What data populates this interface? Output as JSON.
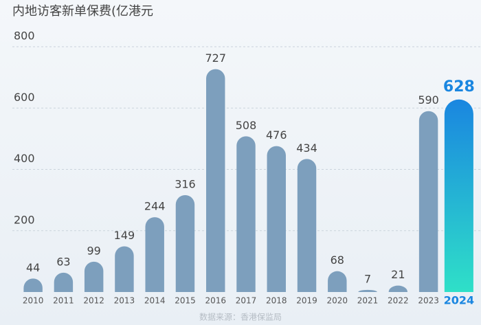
{
  "chart_data": {
    "type": "bar",
    "title": "内地访客新单保费(亿港元",
    "source": "数据来源：香港保监局",
    "categories": [
      "2010",
      "2011",
      "2012",
      "2013",
      "2014",
      "2015",
      "2016",
      "2017",
      "2018",
      "2019",
      "2020",
      "2021",
      "2022",
      "2023",
      "2024"
    ],
    "values": [
      44,
      63,
      99,
      149,
      244,
      316,
      727,
      508,
      476,
      434,
      68,
      7,
      21,
      590,
      628
    ],
    "colors": [
      "#7d9fbd",
      "#7d9fbd",
      "#7d9fbd",
      "#7d9fbd",
      "#7d9fbd",
      "#7d9fbd",
      "#7d9fbd",
      "#7d9fbd",
      "#7d9fbd",
      "#7d9fbd",
      "#7d9fbd",
      "#7d9fbd",
      "#7d9fbd",
      "#7d9fbd",
      "#1a86e0"
    ],
    "ylim": [
      0,
      800
    ],
    "yticks": [
      200,
      400,
      600,
      800
    ],
    "grid": true
  }
}
